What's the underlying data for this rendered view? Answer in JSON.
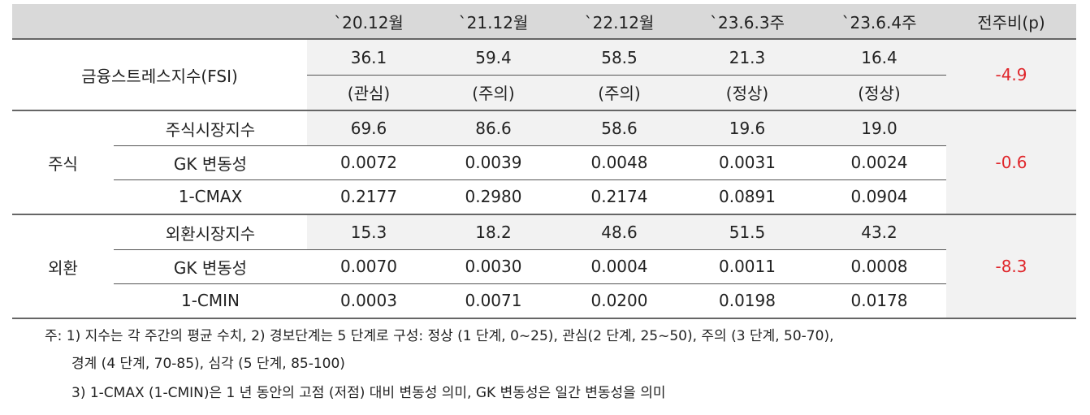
{
  "header": {
    "columns": [
      "`20.12월",
      "`21.12월",
      "`22.12월",
      "`23.6.3주",
      "`23.6.4주",
      "전주비(p)"
    ]
  },
  "fsi": {
    "label": "금융스트레스지수(FSI)",
    "values": [
      "36.1",
      "59.4",
      "58.5",
      "21.3",
      "16.4"
    ],
    "statuses": [
      "(관심)",
      "(주의)",
      "(주의)",
      "(정상)",
      "(정상)"
    ],
    "change": "-4.9"
  },
  "groups": [
    {
      "name": "주식",
      "change": "-0.6",
      "rows": [
        {
          "label": "주식시장지수",
          "values": [
            "69.6",
            "86.6",
            "58.6",
            "19.6",
            "19.0"
          ]
        },
        {
          "label": "GK 변동성",
          "values": [
            "0.0072",
            "0.0039",
            "0.0048",
            "0.0031",
            "0.0024"
          ]
        },
        {
          "label": "1-CMAX",
          "values": [
            "0.2177",
            "0.2980",
            "0.2174",
            "0.0891",
            "0.0904"
          ]
        }
      ]
    },
    {
      "name": "외환",
      "change": "-8.3",
      "rows": [
        {
          "label": "외환시장지수",
          "values": [
            "15.3",
            "18.2",
            "48.6",
            "51.5",
            "43.2"
          ]
        },
        {
          "label": "GK 변동성",
          "values": [
            "0.0070",
            "0.0030",
            "0.0004",
            "0.0011",
            "0.0008"
          ]
        },
        {
          "label": "1-CMIN",
          "values": [
            "0.0003",
            "0.0071",
            "0.0200",
            "0.0198",
            "0.0178"
          ]
        }
      ]
    }
  ],
  "notes": [
    "주: 1) 지수는 각 주간의 평균 수치, 2) 경보단계는 5 단계로 구성: 정상 (1 단계, 0~25), 관심(2 단계, 25~50), 주의 (3 단계, 50-70),",
    "경계 (4 단계, 70-85), 심각 (5 단계, 85-100)",
    "3) 1-CMAX (1-CMIN)은 1 년 동안의 고점 (저점) 대비 변동성 의미, GK 변동성은 일간 변동성을 의미"
  ]
}
